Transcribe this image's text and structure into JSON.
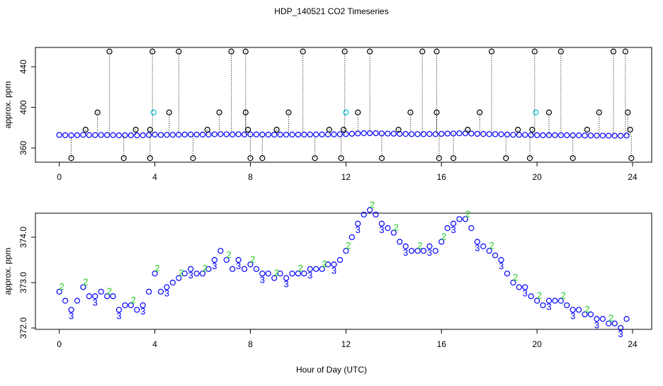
{
  "chart_data": [
    {
      "type": "scatter",
      "title": "HDP_140521  CO2 Timeseries",
      "y_label": "approx. ppm",
      "xlim": [
        -1,
        24.8
      ],
      "xticks": [
        0,
        4,
        8,
        12,
        16,
        20,
        24
      ],
      "ylim": [
        346,
        459
      ],
      "yticks": [
        360,
        400,
        440
      ],
      "x": [
        0,
        0.25,
        0.5,
        0.75,
        1,
        1.25,
        1.5,
        1.75,
        2,
        2.25,
        2.5,
        2.75,
        3,
        3.25,
        3.5,
        3.75,
        4,
        4.25,
        4.5,
        4.75,
        5,
        5.25,
        5.5,
        5.75,
        6,
        6.25,
        6.5,
        6.75,
        7,
        7.25,
        7.5,
        7.75,
        8,
        8.25,
        8.5,
        8.75,
        9,
        9.25,
        9.5,
        9.75,
        10,
        10.25,
        10.5,
        10.75,
        11,
        11.25,
        11.5,
        11.75,
        12,
        12.25,
        12.5,
        12.75,
        13,
        13.25,
        13.5,
        13.75,
        14,
        14.25,
        14.5,
        14.75,
        15,
        15.25,
        15.5,
        15.75,
        16,
        16.25,
        16.5,
        16.75,
        17,
        17.25,
        17.5,
        17.75,
        18,
        18.25,
        18.5,
        18.75,
        19,
        19.25,
        19.5,
        19.75,
        20,
        20.25,
        20.5,
        20.75,
        21,
        21.25,
        21.5,
        21.75,
        22,
        22.25,
        22.5,
        22.75,
        23,
        23.25,
        23.5,
        23.75
      ],
      "series": [
        {
          "color": "#0000ff",
          "marker": "circle",
          "values": [
            372.8,
            372.6,
            372.4,
            372.6,
            372.9,
            372.7,
            372.7,
            372.8,
            372.7,
            372.7,
            372.4,
            372.5,
            372.5,
            372.4,
            372.5,
            372.8,
            373.2,
            372.8,
            372.9,
            373.0,
            373.1,
            373.2,
            373.3,
            373.2,
            373.2,
            373.3,
            373.5,
            373.7,
            373.5,
            373.3,
            373.5,
            373.3,
            373.4,
            373.3,
            373.2,
            373.2,
            373.1,
            373.2,
            373.1,
            373.2,
            373.2,
            373.2,
            373.3,
            373.3,
            373.3,
            373.4,
            373.4,
            373.5,
            373.7,
            374.0,
            374.3,
            374.5,
            374.6,
            374.5,
            374.3,
            374.2,
            374.1,
            373.9,
            373.8,
            373.7,
            373.7,
            373.7,
            373.8,
            373.7,
            373.9,
            374.2,
            374.3,
            374.4,
            374.4,
            374.2,
            373.9,
            373.8,
            373.7,
            373.6,
            373.5,
            373.2,
            373.0,
            372.9,
            372.9,
            372.7,
            372.6,
            372.5,
            372.6,
            372.6,
            372.6,
            372.5,
            372.4,
            372.4,
            372.3,
            372.3,
            372.2,
            372.2,
            372.1,
            372.1,
            372.0,
            372.2
          ]
        },
        {
          "color": "#000000",
          "marker": "circle",
          "drop": true,
          "x": [
            0.5,
            1.1,
            1.6,
            2.1,
            2.7,
            3.2,
            3.8,
            3.8,
            3.9,
            4.6,
            5.0,
            5.6,
            6.2,
            6.7,
            7.2,
            7.8,
            7.8,
            7.9,
            8.0,
            8.5,
            9.1,
            9.6,
            10.2,
            10.7,
            11.3,
            11.8,
            11.9,
            11.95,
            12.5,
            13.0,
            13.5,
            14.2,
            14.7,
            15.2,
            15.8,
            15.8,
            15.9,
            16.5,
            17.1,
            17.6,
            18.1,
            18.7,
            19.2,
            19.7,
            19.8,
            19.9,
            20.5,
            21.0,
            21.5,
            22.1,
            22.6,
            23.2,
            23.7,
            23.8,
            23.9,
            23.95
          ],
          "values": [
            350,
            378,
            395,
            455,
            350,
            378,
            350,
            378,
            455,
            395,
            455,
            350,
            378,
            395,
            455,
            455,
            395,
            378,
            350,
            350,
            378,
            395,
            455,
            350,
            378,
            350,
            378,
            455,
            395,
            455,
            350,
            378,
            395,
            455,
            455,
            395,
            350,
            350,
            378,
            395,
            455,
            350,
            378,
            350,
            378,
            455,
            395,
            455,
            350,
            378,
            395,
            455,
            455,
            395,
            378,
            350
          ]
        },
        {
          "color": "#00c8d8",
          "marker": "circle",
          "x": [
            3.95,
            12.0,
            19.95
          ],
          "values": [
            395,
            395,
            395
          ]
        }
      ]
    },
    {
      "type": "scatter",
      "y_label": "approx. ppm",
      "x_label": "Hour of Day (UTC)",
      "xlim": [
        -1,
        24.8
      ],
      "xticks": [
        0,
        4,
        8,
        12,
        16,
        20,
        24
      ],
      "ylim": [
        371.97,
        374.53
      ],
      "yticks": [
        {
          "value": 372,
          "label": "372.0"
        },
        {
          "value": 373,
          "label": "373.0"
        },
        {
          "value": 374,
          "label": "374.0"
        }
      ],
      "x": [
        0,
        0.25,
        0.5,
        0.75,
        1,
        1.25,
        1.5,
        1.75,
        2,
        2.25,
        2.5,
        2.75,
        3,
        3.25,
        3.5,
        3.75,
        4,
        4.25,
        4.5,
        4.75,
        5,
        5.25,
        5.5,
        5.75,
        6,
        6.25,
        6.5,
        6.75,
        7,
        7.25,
        7.5,
        7.75,
        8,
        8.25,
        8.5,
        8.75,
        9,
        9.25,
        9.5,
        9.75,
        10,
        10.25,
        10.5,
        10.75,
        11,
        11.25,
        11.5,
        11.75,
        12,
        12.25,
        12.5,
        12.75,
        13,
        13.25,
        13.5,
        13.75,
        14,
        14.25,
        14.5,
        14.75,
        15,
        15.25,
        15.5,
        15.75,
        16,
        16.25,
        16.5,
        16.75,
        17,
        17.25,
        17.5,
        17.75,
        18,
        18.25,
        18.5,
        18.75,
        19,
        19.25,
        19.5,
        19.75,
        20,
        20.25,
        20.5,
        20.75,
        21,
        21.25,
        21.5,
        21.75,
        22,
        22.25,
        22.5,
        22.75,
        23,
        23.25,
        23.5,
        23.75
      ],
      "series": [
        {
          "color": "#0000ff",
          "marker": "circle",
          "values": [
            372.8,
            372.6,
            372.4,
            372.6,
            372.9,
            372.7,
            372.7,
            372.8,
            372.7,
            372.7,
            372.4,
            372.5,
            372.5,
            372.4,
            372.5,
            372.8,
            373.2,
            372.8,
            372.9,
            373.0,
            373.1,
            373.2,
            373.3,
            373.2,
            373.2,
            373.3,
            373.5,
            373.7,
            373.5,
            373.3,
            373.5,
            373.3,
            373.4,
            373.3,
            373.2,
            373.2,
            373.1,
            373.2,
            373.1,
            373.2,
            373.2,
            373.2,
            373.3,
            373.3,
            373.3,
            373.4,
            373.4,
            373.5,
            373.7,
            374.0,
            374.3,
            374.5,
            374.6,
            374.5,
            374.3,
            374.2,
            374.1,
            373.9,
            373.8,
            373.7,
            373.7,
            373.7,
            373.8,
            373.7,
            373.9,
            374.2,
            374.3,
            374.4,
            374.4,
            374.2,
            373.9,
            373.8,
            373.7,
            373.6,
            373.5,
            373.2,
            373.0,
            372.9,
            372.9,
            372.7,
            372.6,
            372.5,
            372.6,
            372.6,
            372.6,
            372.5,
            372.4,
            372.4,
            372.3,
            372.3,
            372.2,
            372.2,
            372.1,
            372.1,
            372.0,
            372.2
          ]
        },
        {
          "color": "#22cc22",
          "marker": "2",
          "x": [
            0.1,
            1.1,
            2.1,
            3.1,
            4.1,
            5.1,
            6.1,
            7.1,
            8.1,
            9.1,
            10.1,
            11.1,
            12.1,
            13.1,
            14.1,
            15.1,
            16.1,
            17.1,
            18.1,
            19.1,
            20.1,
            21.1,
            22.1,
            23.1
          ],
          "values": [
            372.9,
            373.0,
            372.8,
            372.6,
            373.3,
            373.2,
            373.3,
            373.6,
            373.5,
            373.2,
            373.3,
            373.4,
            373.8,
            374.7,
            374.2,
            373.8,
            374.0,
            374.5,
            373.8,
            373.1,
            372.7,
            372.7,
            372.4,
            372.2
          ]
        },
        {
          "color": "#0000ff",
          "marker": "3",
          "x": [
            0.5,
            1.5,
            2.5,
            3.5,
            4.5,
            5.5,
            6.5,
            7.5,
            8.5,
            9.5,
            10.5,
            11.5,
            12.5,
            13.5,
            14.5,
            15.5,
            16.5,
            17.5,
            18.5,
            19.5,
            20.5,
            21.5,
            22.5,
            23.5
          ],
          "values": [
            372.25,
            372.55,
            372.25,
            372.35,
            372.75,
            373.15,
            373.35,
            373.35,
            373.05,
            372.95,
            373.15,
            373.25,
            374.15,
            374.15,
            373.65,
            373.65,
            374.15,
            373.75,
            373.35,
            372.75,
            372.45,
            372.25,
            372.05,
            371.85
          ]
        }
      ]
    }
  ]
}
